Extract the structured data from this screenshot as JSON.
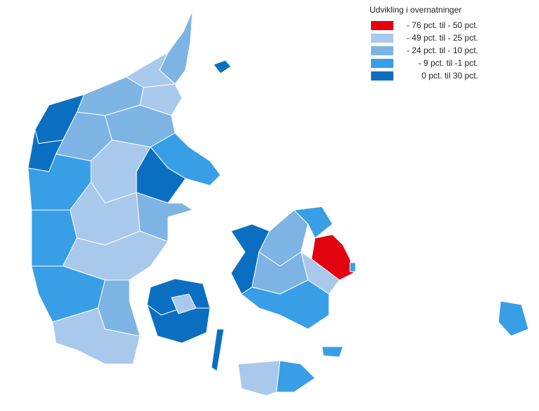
{
  "legend": {
    "title": "Udvikling i overnatninger",
    "items": [
      {
        "label": "- 76 pct. til - 50 pct.",
        "color": "#e3000f"
      },
      {
        "label": "- 49 pct. til - 25 pct.",
        "color": "#a9c9ec"
      },
      {
        "label": "- 24 pct. til - 10 pct.",
        "color": "#7db4e4"
      },
      {
        "label": "- 9 pct. til -1 pct.",
        "color": "#389fe6"
      },
      {
        "label": "0 pct. til 30 pct.",
        "color": "#0b6fc1"
      }
    ]
  }
}
